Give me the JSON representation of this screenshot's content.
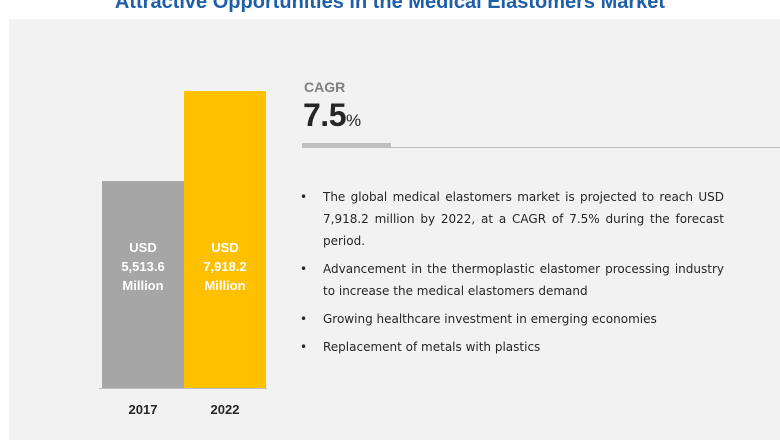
{
  "title": "Attractive Opportunities in the Medical Elastomers Market",
  "chart_data": {
    "type": "bar",
    "categories": [
      "2017",
      "2022"
    ],
    "values": [
      5513.6,
      7918.2
    ],
    "ylim": [
      0,
      7918.2
    ],
    "bar_labels": [
      [
        "USD",
        "5,513.6",
        "Million"
      ],
      [
        "USD",
        "7,918.2",
        "Million"
      ]
    ],
    "colors": [
      "#a6a6a6",
      "#ffc000"
    ],
    "grid": false
  },
  "cagr": {
    "label": "CAGR",
    "value": "7.5",
    "unit": "%"
  },
  "bullets": [
    "The global medical elastomers market is projected to reach USD 7,918.2 million by 2022, at a CAGR of 7.5% during the forecast period.",
    "Advancement in the thermoplastic elastomer processing industry to increase the medical elastomers demand",
    "Growing healthcare investment in emerging economies",
    "Replacement of metals with plastics"
  ],
  "bullet_symbol": "•"
}
